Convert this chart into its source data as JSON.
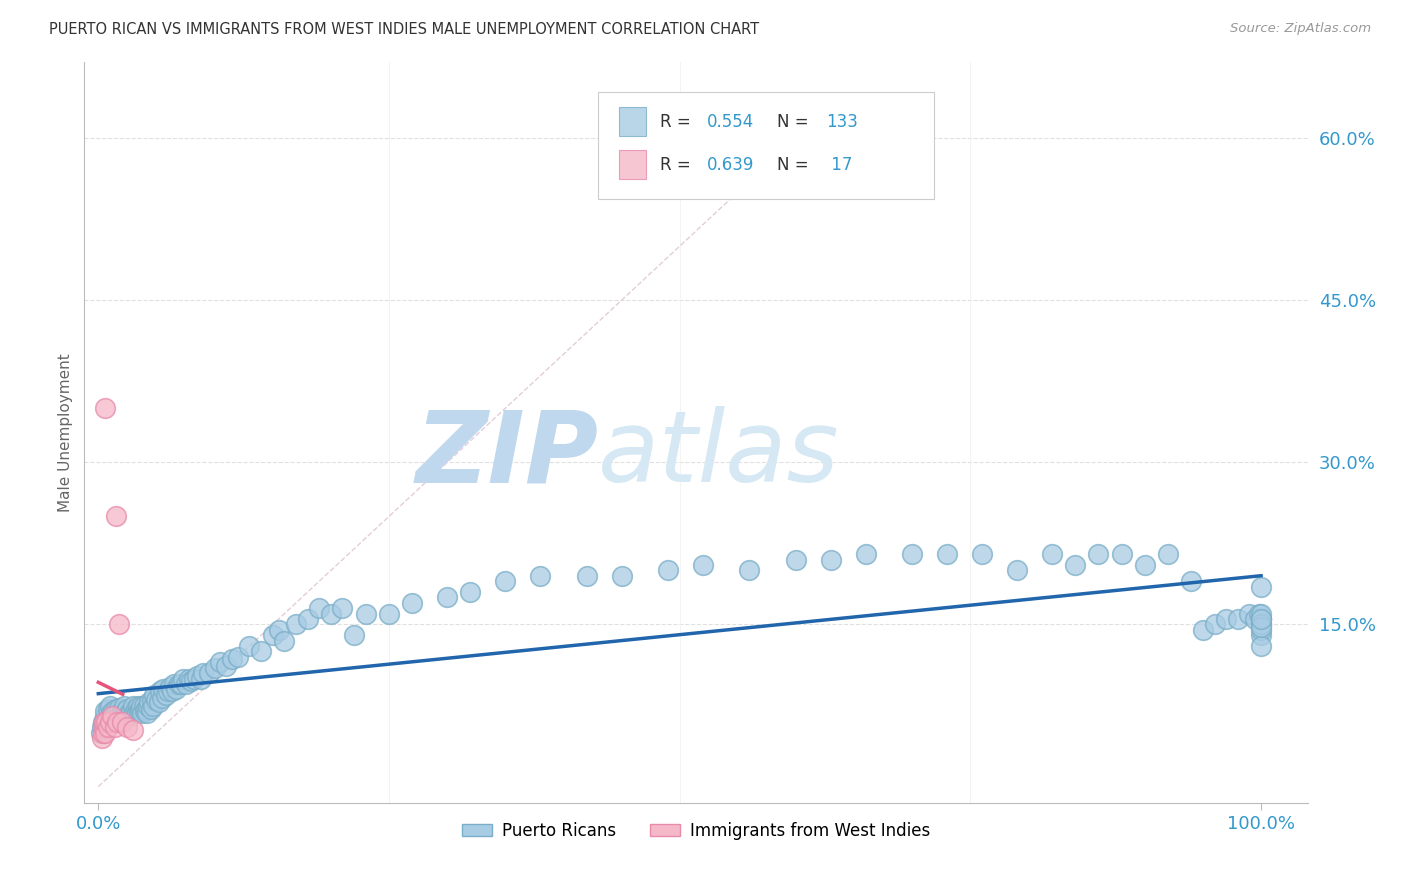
{
  "title": "PUERTO RICAN VS IMMIGRANTS FROM WEST INDIES MALE UNEMPLOYMENT CORRELATION CHART",
  "source": "Source: ZipAtlas.com",
  "legend_label1": "Puerto Ricans",
  "legend_label2": "Immigrants from West Indies",
  "R1": "0.554",
  "N1": "133",
  "R2": "0.639",
  "N2": "17",
  "blue_color": "#a8cce4",
  "blue_edge_color": "#7aaec8",
  "pink_color": "#f5b8c8",
  "pink_edge_color": "#e88aaa",
  "blue_line_color": "#2166ac",
  "pink_line_color": "#e8537a",
  "diag_line_color": "#d0d0d0",
  "title_color": "#333333",
  "source_color": "#999999",
  "stat_number_color": "#3399cc",
  "stat_label_color": "#333333",
  "watermark_zip_color": "#c5dff0",
  "watermark_atlas_color": "#d8eaf6",
  "grid_color": "#e0e0e0",
  "background": "#ffffff",
  "ylim_min": -0.015,
  "ylim_max": 0.67,
  "xlim_min": -0.012,
  "xlim_max": 1.04,
  "blue_scatter_x": [
    0.002,
    0.003,
    0.004,
    0.005,
    0.006,
    0.006,
    0.007,
    0.008,
    0.008,
    0.009,
    0.01,
    0.01,
    0.011,
    0.012,
    0.013,
    0.014,
    0.015,
    0.015,
    0.016,
    0.017,
    0.018,
    0.018,
    0.019,
    0.02,
    0.021,
    0.022,
    0.023,
    0.024,
    0.025,
    0.026,
    0.027,
    0.028,
    0.03,
    0.031,
    0.032,
    0.033,
    0.034,
    0.035,
    0.036,
    0.037,
    0.038,
    0.039,
    0.04,
    0.041,
    0.042,
    0.043,
    0.044,
    0.045,
    0.046,
    0.047,
    0.048,
    0.05,
    0.052,
    0.053,
    0.055,
    0.056,
    0.058,
    0.06,
    0.062,
    0.063,
    0.065,
    0.067,
    0.069,
    0.071,
    0.073,
    0.075,
    0.078,
    0.08,
    0.082,
    0.085,
    0.088,
    0.09,
    0.095,
    0.1,
    0.105,
    0.11,
    0.115,
    0.12,
    0.13,
    0.14,
    0.15,
    0.155,
    0.16,
    0.17,
    0.18,
    0.19,
    0.2,
    0.21,
    0.22,
    0.23,
    0.25,
    0.27,
    0.3,
    0.32,
    0.35,
    0.38,
    0.42,
    0.45,
    0.49,
    0.52,
    0.56,
    0.6,
    0.63,
    0.66,
    0.7,
    0.73,
    0.76,
    0.79,
    0.82,
    0.84,
    0.86,
    0.88,
    0.9,
    0.92,
    0.94,
    0.95,
    0.96,
    0.97,
    0.98,
    0.99,
    0.995,
    0.998,
    1.0,
    1.0,
    1.0,
    1.0,
    1.0,
    1.0,
    1.0,
    1.0,
    1.0,
    1.0,
    1.0
  ],
  "blue_scatter_y": [
    0.05,
    0.055,
    0.06,
    0.06,
    0.065,
    0.07,
    0.055,
    0.065,
    0.072,
    0.058,
    0.062,
    0.075,
    0.068,
    0.06,
    0.07,
    0.065,
    0.068,
    0.072,
    0.06,
    0.068,
    0.065,
    0.073,
    0.062,
    0.07,
    0.068,
    0.075,
    0.065,
    0.07,
    0.072,
    0.068,
    0.065,
    0.07,
    0.075,
    0.068,
    0.072,
    0.068,
    0.075,
    0.07,
    0.072,
    0.075,
    0.068,
    0.075,
    0.07,
    0.072,
    0.068,
    0.075,
    0.078,
    0.072,
    0.08,
    0.075,
    0.085,
    0.08,
    0.078,
    0.088,
    0.082,
    0.09,
    0.085,
    0.088,
    0.092,
    0.088,
    0.095,
    0.09,
    0.095,
    0.095,
    0.1,
    0.095,
    0.1,
    0.098,
    0.1,
    0.102,
    0.1,
    0.105,
    0.105,
    0.11,
    0.115,
    0.112,
    0.118,
    0.12,
    0.13,
    0.125,
    0.14,
    0.145,
    0.135,
    0.15,
    0.155,
    0.165,
    0.16,
    0.165,
    0.14,
    0.16,
    0.16,
    0.17,
    0.175,
    0.18,
    0.19,
    0.195,
    0.195,
    0.195,
    0.2,
    0.205,
    0.2,
    0.21,
    0.21,
    0.215,
    0.215,
    0.215,
    0.215,
    0.2,
    0.215,
    0.205,
    0.215,
    0.215,
    0.205,
    0.215,
    0.19,
    0.145,
    0.15,
    0.155,
    0.155,
    0.16,
    0.155,
    0.16,
    0.185,
    0.15,
    0.155,
    0.14,
    0.145,
    0.13,
    0.155,
    0.16,
    0.15,
    0.148,
    0.155
  ],
  "pink_scatter_x": [
    0.003,
    0.004,
    0.005,
    0.005,
    0.006,
    0.006,
    0.007,
    0.008,
    0.01,
    0.012,
    0.014,
    0.015,
    0.016,
    0.018,
    0.02,
    0.025,
    0.03
  ],
  "pink_scatter_y": [
    0.045,
    0.05,
    0.055,
    0.06,
    0.05,
    0.35,
    0.06,
    0.055,
    0.06,
    0.065,
    0.055,
    0.25,
    0.06,
    0.15,
    0.06,
    0.055,
    0.052
  ],
  "pink_line_x0": 0.0,
  "pink_line_x1": 0.021,
  "diag_line_x0": 0.0,
  "diag_line_x1": 0.62,
  "diag_line_y0": 0.0,
  "diag_line_y1": 0.62
}
